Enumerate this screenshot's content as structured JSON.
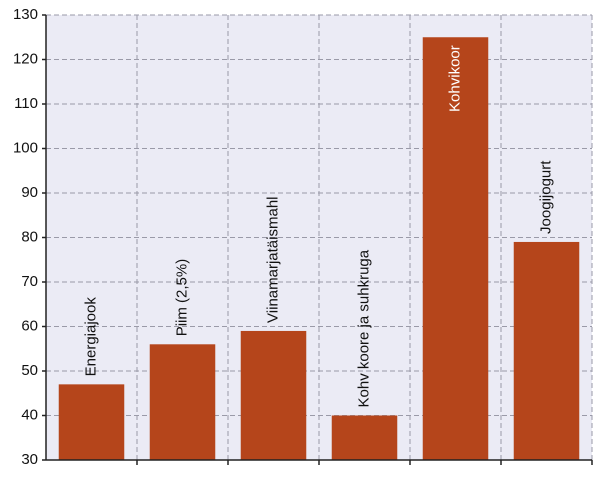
{
  "chart_data": {
    "type": "bar",
    "categories": [
      "Energiajook",
      "Piim (2,5%)",
      "Viinamarjatäismahl",
      "Kohv koore ja suhkruga",
      "Kohvikoor",
      "Joogijogurt"
    ],
    "values": [
      47,
      56,
      59,
      40,
      125,
      79
    ],
    "color": "#b5451b",
    "ylim": [
      30,
      130
    ],
    "yticks": [
      30,
      40,
      50,
      60,
      70,
      80,
      90,
      100,
      110,
      120,
      130
    ],
    "grid": true
  }
}
